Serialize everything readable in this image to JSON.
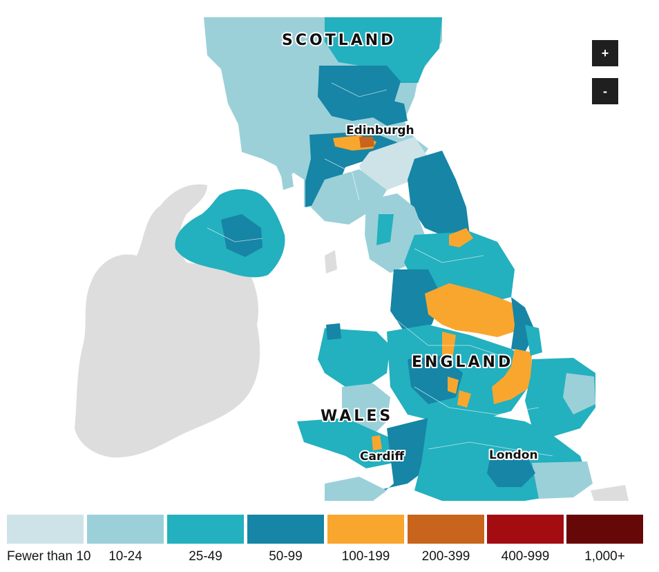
{
  "map": {
    "labels": {
      "scotland": "SCOTLAND",
      "england": "ENGLAND",
      "wales": "WALES",
      "edinburgh": "Edinburgh",
      "cardiff": "Cardiff",
      "london": "London"
    },
    "land_color_no_data": "#dddddd"
  },
  "zoom": {
    "in_label": "+",
    "out_label": "-"
  },
  "legend": {
    "items": [
      {
        "label": "Fewer than 10",
        "color": "#cde3e8"
      },
      {
        "label": "10-24",
        "color": "#9bd0d9"
      },
      {
        "label": "25-49",
        "color": "#23b0bf"
      },
      {
        "label": "50-99",
        "color": "#1685a6"
      },
      {
        "label": "100-199",
        "color": "#f9a62f"
      },
      {
        "label": "200-399",
        "color": "#c8641c"
      },
      {
        "label": "400-999",
        "color": "#a30d11"
      },
      {
        "label": "1,000+",
        "color": "#660807"
      }
    ]
  }
}
